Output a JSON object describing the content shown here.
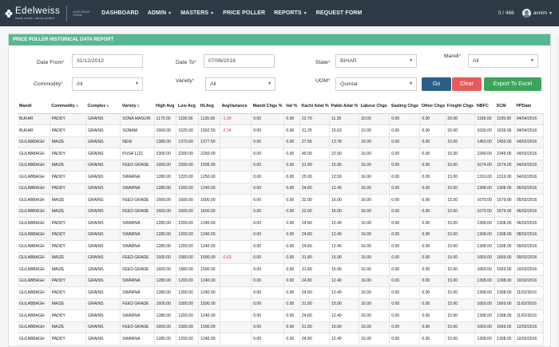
{
  "nav": {
    "logo_name": "Edelweiss",
    "logo_tagline": "Ideas create, values protect",
    "logo_sub": "AGRI VALUE CHAIN",
    "items": [
      "DASHBOARD",
      "ADMIN",
      "MASTERS",
      "PRICE POLLER",
      "REPORTS",
      "REQUEST FORM"
    ],
    "counter": "0 / 466",
    "user": "avnim"
  },
  "panel": {
    "title": "PRICE POLLER HISTORICAL DATA REPORT"
  },
  "form": {
    "date_from_label": "Date From",
    "date_from_value": "31/12/2012",
    "date_to_label": "Date To",
    "date_to_value": "07/06/2016",
    "state_label": "State",
    "state_value": "BIHAR",
    "mandi_label": "Mandi",
    "mandi_value": "All",
    "commodity_label": "Commodity",
    "commodity_value": "All",
    "variety_label": "Variety",
    "variety_value": "All",
    "uom_label": "UOM",
    "uom_value": "Quintal",
    "go_label": "Go",
    "clear_label": "Clear",
    "export_label": "Export To Excel"
  },
  "table": {
    "headers": [
      "Mandi",
      "Commodity",
      "Complex",
      "Variety",
      "High Avg",
      "Low Avg",
      "HLAvg",
      "AvgVariance",
      "Mandi Chgs %",
      "Vat %",
      "Kachi Adat %",
      "Pakki Adat %",
      "Labour Chgs",
      "Sealing Chgs",
      "Other Chgs",
      "Frieght Chgs",
      "NBFC",
      "SCM",
      "PPDate"
    ],
    "rows": [
      [
        "BUKAR",
        "PADDY",
        "GRAINS",
        "SONA MASURI",
        "1170.00",
        "1100.00",
        "1135.00",
        "-1.30",
        "0.00",
        "0.00",
        "22.70",
        "11.35",
        "10.00",
        "0.00",
        "0.00",
        "20.00",
        "1199.00",
        "1199.00",
        "04/04/2016"
      ],
      [
        "BUKAR",
        "PADDY",
        "GRAINS",
        "SONAM",
        "1600.00",
        "1525.00",
        "1562.50",
        "-2.34",
        "0.00",
        "0.00",
        "31.25",
        "15.63",
        "10.00",
        "0.00",
        "0.00",
        "20.00",
        "1639.00",
        "1639.00",
        "04/04/2016"
      ],
      [
        "GULABBAGH",
        "MAIZE",
        "GRAINS",
        "NEW",
        "1385.00",
        "1370.00",
        "1377.50",
        "",
        "0.00",
        "0.00",
        "27.55",
        "13.78",
        "16.00",
        "0.00",
        "0.00",
        "15.00",
        "1450.00",
        "1450.00",
        "04/02/2016"
      ],
      [
        "GULABBAGH",
        "PADDY",
        "GRAINS",
        "PUSA 1121",
        "2300.00",
        "2200.00",
        "2250.00",
        "",
        "0.00",
        "0.00",
        "45.00",
        "22.50",
        "16.00",
        "0.00",
        "0.00",
        "15.00",
        "2349.00",
        "2349.00",
        "04/02/2016"
      ],
      [
        "GULABBAGH",
        "MAIZE",
        "GRAINS",
        "FEED GRADE",
        "1600.00",
        "1590.00",
        "1595.00",
        "",
        "0.00",
        "0.00",
        "31.90",
        "15.95",
        "16.00",
        "0.00",
        "0.00",
        "15.00",
        "1674.00",
        "1674.00",
        "04/02/2016"
      ],
      [
        "GULABBAGH",
        "PADDY",
        "GRAINS",
        "SWARNA",
        "1280.00",
        "1220.00",
        "1250.00",
        "",
        "0.00",
        "0.00",
        "25.00",
        "12.50",
        "16.00",
        "0.00",
        "0.00",
        "15.00",
        "1319.00",
        "1319.00",
        "04/02/2016"
      ],
      [
        "GULABBAGH",
        "PADDY",
        "GRAINS",
        "SWARNA",
        "1280.00",
        "1200.00",
        "1240.00",
        "",
        "0.00",
        "0.00",
        "24.80",
        "12.40",
        "16.00",
        "0.00",
        "0.00",
        "15.00",
        "1308.00",
        "1308.00",
        "05/02/2016"
      ],
      [
        "GULABBAGH",
        "MAIZE",
        "GRAINS",
        "FEED GRADE",
        "1600.00",
        "1600.00",
        "1600.00",
        "",
        "0.00",
        "0.00",
        "32.00",
        "16.00",
        "16.00",
        "0.00",
        "0.00",
        "15.00",
        "1679.00",
        "1679.00",
        "05/02/2016"
      ],
      [
        "GULABBAGH",
        "MAIZE",
        "GRAINS",
        "FEED GRADE",
        "1600.00",
        "1600.00",
        "1600.00",
        "",
        "0.00",
        "0.00",
        "32.00",
        "16.00",
        "16.00",
        "0.00",
        "0.00",
        "15.00",
        "1679.00",
        "1679.00",
        "06/02/2016"
      ],
      [
        "GULABBAGH",
        "PADDY",
        "GRAINS",
        "SWARNA",
        "1280.00",
        "1200.00",
        "1240.00",
        "",
        "0.00",
        "0.00",
        "24.80",
        "12.40",
        "16.00",
        "0.00",
        "0.00",
        "15.00",
        "1308.00",
        "1308.00",
        "06/02/2016"
      ],
      [
        "GULABBAGH",
        "PADDY",
        "GRAINS",
        "SWARNA",
        "1280.00",
        "1200.00",
        "1240.00",
        "",
        "0.00",
        "0.00",
        "24.80",
        "12.40",
        "16.00",
        "0.00",
        "0.00",
        "15.00",
        "1308.00",
        "1308.00",
        "08/02/2016"
      ],
      [
        "GULABBAGH",
        "PADDY",
        "GRAINS",
        "SWARNA",
        "1280.00",
        "1200.00",
        "1240.00",
        "",
        "0.00",
        "0.00",
        "24.80",
        "12.40",
        "16.00",
        "0.00",
        "0.00",
        "15.00",
        "1308.00",
        "1308.00",
        "09/02/2016"
      ],
      [
        "GULABBAGH",
        "MAIZE",
        "GRAINS",
        "FEED GRADE",
        "1600.00",
        "1580.00",
        "1590.00",
        "-0.63",
        "0.00",
        "0.00",
        "31.80",
        "15.90",
        "16.00",
        "0.00",
        "0.00",
        "15.00",
        "1669.00",
        "1669.00",
        "09/02/2016"
      ],
      [
        "GULABBAGH",
        "MAIZE",
        "GRAINS",
        "FEED GRADE",
        "1600.00",
        "1580.00",
        "1590.00",
        "",
        "0.00",
        "0.00",
        "31.80",
        "15.90",
        "16.00",
        "0.00",
        "0.00",
        "15.00",
        "1669.00",
        "1669.00",
        "10/02/2016"
      ],
      [
        "GULABBAGH",
        "PADDY",
        "GRAINS",
        "SWARNA",
        "1280.00",
        "1200.00",
        "1240.00",
        "",
        "0.00",
        "0.00",
        "24.80",
        "12.40",
        "16.00",
        "0.00",
        "0.00",
        "15.00",
        "1308.00",
        "1308.00",
        "10/02/2016"
      ],
      [
        "GULABBAGH",
        "PADDY",
        "GRAINS",
        "SWARNA",
        "1280.00",
        "1200.00",
        "1240.00",
        "",
        "0.00",
        "0.00",
        "24.80",
        "12.40",
        "16.00",
        "0.00",
        "0.00",
        "15.00",
        "1308.00",
        "1308.00",
        "11/02/2016"
      ],
      [
        "GULABBAGH",
        "MAIZE",
        "GRAINS",
        "FEED GRADE",
        "1600.00",
        "1580.00",
        "1590.00",
        "",
        "0.00",
        "0.00",
        "31.80",
        "15.90",
        "16.00",
        "0.00",
        "0.00",
        "15.00",
        "1669.00",
        "1669.00",
        "11/02/2016"
      ],
      [
        "GULABBAGH",
        "PADDY",
        "GRAINS",
        "SWARNA",
        "1280.00",
        "1200.00",
        "1240.00",
        "",
        "0.00",
        "0.00",
        "24.80",
        "12.40",
        "16.00",
        "0.00",
        "0.00",
        "15.00",
        "1308.00",
        "1308.00",
        "11/02/2016"
      ],
      [
        "GULABBAGH",
        "MAIZE",
        "GRAINS",
        "FEED GRADE",
        "1600.00",
        "1580.00",
        "1590.00",
        "",
        "0.00",
        "0.00",
        "31.80",
        "15.90",
        "16.00",
        "0.00",
        "0.00",
        "15.00",
        "1669.00",
        "1669.00",
        "12/02/2016"
      ],
      [
        "GULABBAGH",
        "PADDY",
        "GRAINS",
        "SWARNA",
        "1280.00",
        "1200.00",
        "1240.00",
        "",
        "0.00",
        "0.00",
        "24.80",
        "12.40",
        "16.00",
        "0.00",
        "0.00",
        "15.00",
        "1308.00",
        "1308.00",
        "12/02/2016"
      ]
    ]
  },
  "colors": {
    "nav_bg": "#2e3b47",
    "header_green": "#58b891",
    "go": "#2a5f87",
    "clear": "#e65b5b",
    "export": "#3ba55b",
    "negative": "#d23a3a"
  },
  "icons": {
    "logo": "edelweiss-flower-icon",
    "avatar": "user-avatar-icon",
    "dropdown": "chevron-down-icon",
    "sort": "sort-icon"
  }
}
